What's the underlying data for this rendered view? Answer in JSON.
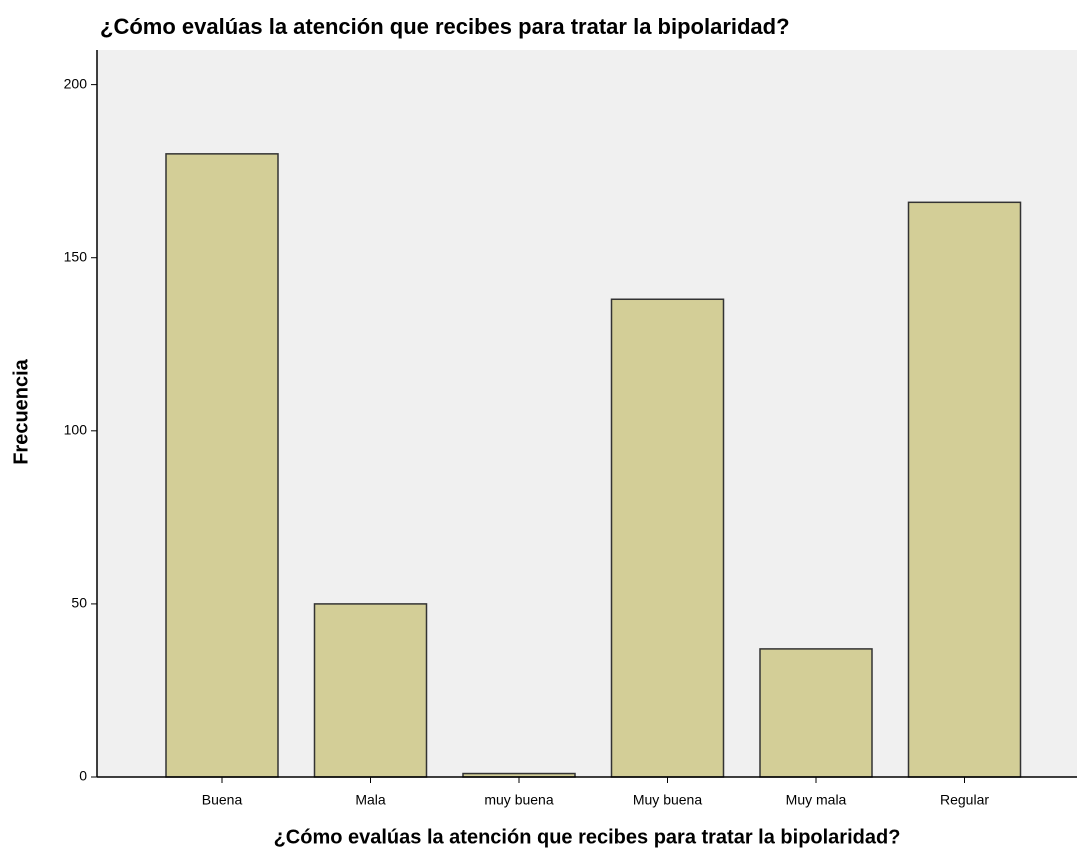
{
  "chart_data": {
    "type": "bar",
    "title": "¿Cómo evalúas la atención que recibes para tratar la bipolaridad?",
    "x_label": "¿Cómo evalúas la atención que recibes para tratar la bipolaridad?",
    "y_label": "Frecuencia",
    "categories": [
      "Buena",
      "Mala",
      "muy buena",
      "Muy buena",
      "Muy mala",
      "Regular"
    ],
    "values": [
      180,
      50,
      1,
      138,
      37,
      166
    ],
    "color": "#d3ce97",
    "ylim": [
      0,
      210
    ],
    "yticks": [
      0,
      50,
      100,
      150,
      200
    ],
    "grid": false
  }
}
